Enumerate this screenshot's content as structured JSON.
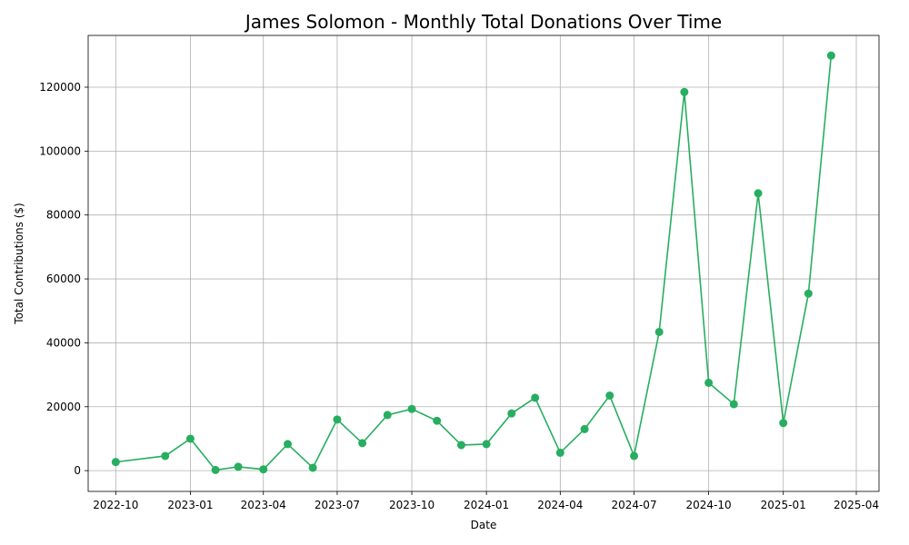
{
  "chart_data": {
    "type": "line",
    "title": "James Solomon - Monthly Total Donations Over Time",
    "xlabel": "Date",
    "ylabel": "Total Contributions ($)",
    "grid": true,
    "color": "#27ae60",
    "x_ticks": [
      "2022-10",
      "2023-01",
      "2023-04",
      "2023-07",
      "2023-10",
      "2024-01",
      "2024-04",
      "2024-07",
      "2024-10",
      "2025-01",
      "2025-04"
    ],
    "y_ticks": [
      0,
      20000,
      40000,
      60000,
      80000,
      100000,
      120000
    ],
    "ylim": [
      -6500,
      136200
    ],
    "xlim": [
      "2022-08-28",
      "2025-04-29"
    ],
    "x": [
      "2022-10-01",
      "2022-12-01",
      "2023-01-01",
      "2023-02-01",
      "2023-03-01",
      "2023-04-01",
      "2023-05-01",
      "2023-06-01",
      "2023-07-01",
      "2023-08-01",
      "2023-09-01",
      "2023-10-01",
      "2023-11-01",
      "2023-12-01",
      "2024-01-01",
      "2024-02-01",
      "2024-03-01",
      "2024-04-01",
      "2024-05-01",
      "2024-06-01",
      "2024-07-01",
      "2024-08-01",
      "2024-09-01",
      "2024-10-01",
      "2024-11-01",
      "2024-12-01",
      "2025-01-01",
      "2025-02-01",
      "2025-03-01"
    ],
    "y": [
      2700,
      4600,
      10000,
      200,
      1200,
      400,
      8300,
      900,
      16000,
      8600,
      17400,
      19300,
      15600,
      8000,
      8300,
      17900,
      22800,
      5600,
      13000,
      23500,
      4600,
      43400,
      118500,
      27500,
      20800,
      86800,
      14900,
      55400,
      129900
    ]
  }
}
